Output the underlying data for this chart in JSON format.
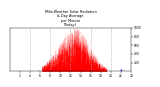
{
  "title": "Milw.Weather Solar Radiation\n& Day Average\nper Minute\n(Today)",
  "title_color": "#000000",
  "bg_color": "#ffffff",
  "plot_bg_color": "#ffffff",
  "grid_color": "#aaaaaa",
  "bar_color": "#ff0000",
  "line_color": "#0000ff",
  "ylim": [
    0,
    1000
  ],
  "xlim": [
    0,
    1440
  ],
  "current_time": 1320,
  "sunrise": 380,
  "sunset": 1150,
  "peak_time": 780,
  "peak_value": 950,
  "grid_x": [
    240,
    480,
    720,
    960,
    1200
  ],
  "yticks": [
    200,
    400,
    600,
    800,
    1000
  ],
  "xtick_labels": [
    "2",
    "4",
    "6",
    "8",
    "10",
    "12",
    "14",
    "16",
    "18",
    "20",
    "22",
    "24"
  ],
  "xtick_positions": [
    120,
    240,
    360,
    480,
    600,
    720,
    840,
    960,
    1080,
    1200,
    1320,
    1440
  ]
}
